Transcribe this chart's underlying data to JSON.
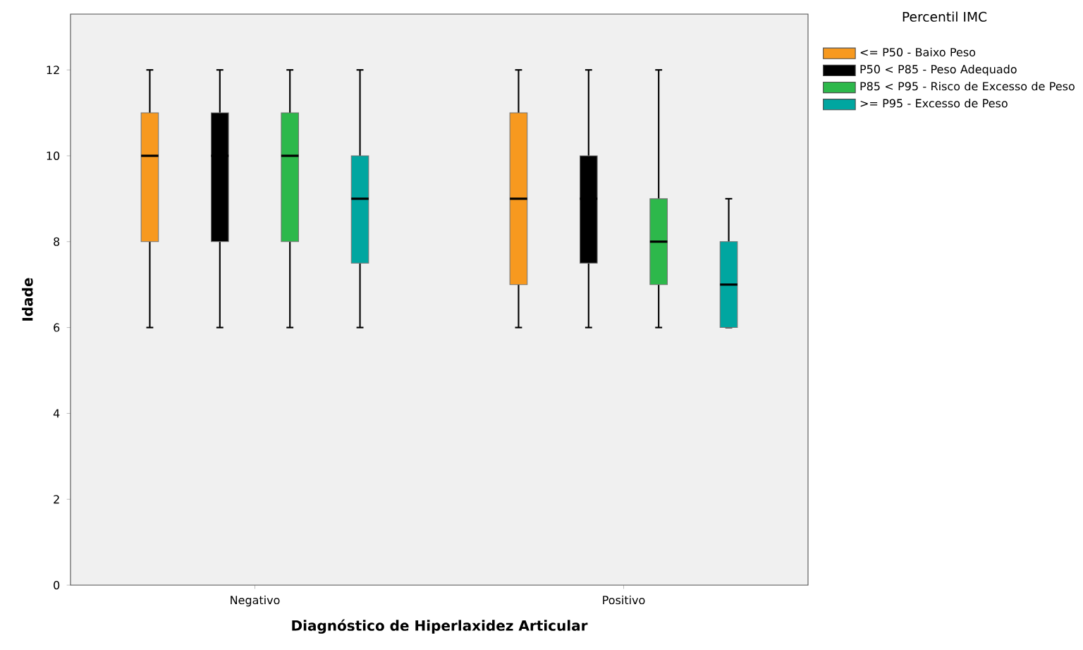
{
  "chart_data": {
    "type": "box",
    "xlabel": "Diagnóstico de Hiperlaxidez Articular",
    "ylabel": "Idade",
    "legend_title": "Percentil IMC",
    "legend": "top right",
    "categories": [
      "Negativo",
      "Positivo"
    ],
    "ylim": [
      0,
      13.3
    ],
    "yticks": [
      0,
      2,
      4,
      6,
      8,
      10,
      12
    ],
    "series": [
      {
        "name": "<= P50 - Baixo Peso",
        "color": "#f7991f",
        "boxes": [
          {
            "low": 6,
            "q1": 8,
            "median": 10,
            "q3": 11,
            "high": 12
          },
          {
            "low": 6,
            "q1": 7,
            "median": 9,
            "q3": 11,
            "high": 12
          }
        ]
      },
      {
        "name": "P50 < P85 - Peso Adequado",
        "color": "#000000",
        "boxes": [
          {
            "low": 6,
            "q1": 8,
            "median": 10,
            "q3": 11,
            "high": 12
          },
          {
            "low": 6,
            "q1": 7.5,
            "median": 9,
            "q3": 10,
            "high": 12
          }
        ]
      },
      {
        "name": "P85 < P95 - Risco de Excesso de Peso",
        "color": "#2db84b",
        "boxes": [
          {
            "low": 6,
            "q1": 8,
            "median": 10,
            "q3": 11,
            "high": 12
          },
          {
            "low": 6,
            "q1": 7,
            "median": 8,
            "q3": 9,
            "high": 12
          }
        ]
      },
      {
        "name": ">= P95 - Excesso de Peso",
        "color": "#00a6a0",
        "boxes": [
          {
            "low": 6,
            "q1": 7.5,
            "median": 9,
            "q3": 10,
            "high": 12
          },
          {
            "low": 6,
            "q1": 6,
            "median": 7,
            "q3": 8,
            "high": 9
          }
        ]
      }
    ]
  }
}
